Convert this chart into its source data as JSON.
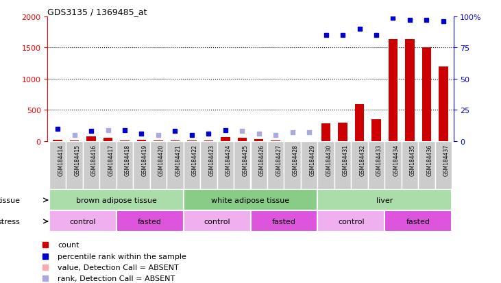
{
  "title": "GDS3135 / 1369485_at",
  "samples": [
    "GSM184414",
    "GSM184415",
    "GSM184416",
    "GSM184417",
    "GSM184418",
    "GSM184419",
    "GSM184420",
    "GSM184421",
    "GSM184422",
    "GSM184423",
    "GSM184424",
    "GSM184425",
    "GSM184426",
    "GSM184427",
    "GSM184428",
    "GSM184429",
    "GSM184430",
    "GSM184431",
    "GSM184432",
    "GSM184433",
    "GSM184434",
    "GSM184435",
    "GSM184436",
    "GSM184437"
  ],
  "count_values": [
    20,
    10,
    80,
    50,
    15,
    20,
    10,
    10,
    10,
    15,
    70,
    50,
    30,
    10,
    5,
    5,
    290,
    295,
    590,
    350,
    1640,
    1640,
    1500,
    1200
  ],
  "count_absent": [
    false,
    false,
    false,
    false,
    false,
    false,
    false,
    false,
    false,
    false,
    false,
    false,
    false,
    false,
    false,
    false,
    false,
    false,
    false,
    false,
    false,
    false,
    false,
    false
  ],
  "rank_values": [
    10,
    5,
    8,
    9,
    9,
    6,
    5,
    8,
    5,
    6,
    9,
    8,
    6,
    5,
    7,
    7,
    85,
    85,
    90,
    85,
    99,
    97,
    97,
    96
  ],
  "rank_absent": [
    false,
    true,
    false,
    true,
    false,
    false,
    true,
    false,
    false,
    false,
    false,
    true,
    true,
    true,
    true,
    true,
    false,
    false,
    false,
    false,
    false,
    false,
    false,
    false
  ],
  "tissue_groups": [
    {
      "label": "brown adipose tissue",
      "start": 0,
      "end": 8,
      "color": "#aaddaa"
    },
    {
      "label": "white adipose tissue",
      "start": 8,
      "end": 16,
      "color": "#88cc88"
    },
    {
      "label": "liver",
      "start": 16,
      "end": 24,
      "color": "#aaddaa"
    }
  ],
  "stress_groups": [
    {
      "label": "control",
      "start": 0,
      "end": 4,
      "color": "#f0b0f0"
    },
    {
      "label": "fasted",
      "start": 4,
      "end": 8,
      "color": "#dd55dd"
    },
    {
      "label": "control",
      "start": 8,
      "end": 12,
      "color": "#f0b0f0"
    },
    {
      "label": "fasted",
      "start": 12,
      "end": 16,
      "color": "#dd55dd"
    },
    {
      "label": "control",
      "start": 16,
      "end": 20,
      "color": "#f0b0f0"
    },
    {
      "label": "fasted",
      "start": 20,
      "end": 24,
      "color": "#dd55dd"
    }
  ],
  "ylim_left": [
    0,
    2000
  ],
  "ylim_right": [
    0,
    100
  ],
  "yticks_left": [
    0,
    500,
    1000,
    1500,
    2000
  ],
  "yticks_right": [
    0,
    25,
    50,
    75,
    100
  ],
  "bar_color": "#cc0000",
  "bar_absent_color": "#ffaaaa",
  "rank_color": "#0000cc",
  "rank_absent_color": "#aaaadd",
  "bg_gray": "#cccccc",
  "legend_items": [
    {
      "label": "count",
      "color": "#cc0000"
    },
    {
      "label": "percentile rank within the sample",
      "color": "#0000cc"
    },
    {
      "label": "value, Detection Call = ABSENT",
      "color": "#ffaaaa"
    },
    {
      "label": "rank, Detection Call = ABSENT",
      "color": "#aaaadd"
    }
  ]
}
